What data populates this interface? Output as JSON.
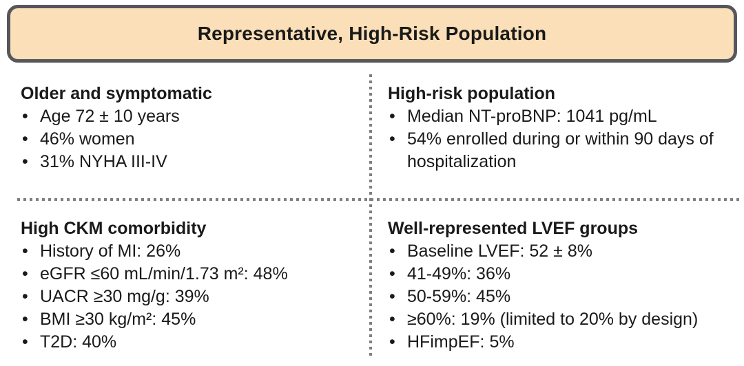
{
  "title": {
    "text": "Representative, High-Risk Population"
  },
  "colors": {
    "banner_fill": "#fbdfb8",
    "banner_border": "#56575b",
    "divider_dot": "#7f7f7f",
    "text": "#1a1a1a",
    "background": "#ffffff"
  },
  "quadrants": [
    {
      "id": "older-and-symptomatic",
      "heading": "Older and symptomatic",
      "bullets": [
        "Age 72 ± 10 years",
        "46% women",
        "31% NYHA III-IV"
      ]
    },
    {
      "id": "high-risk-population",
      "heading": "High-risk population",
      "bullets": [
        "Median NT-proBNP: 1041 pg/mL",
        "54% enrolled during or within 90 days of hospitalization"
      ]
    },
    {
      "id": "high-ckm-comorbidity",
      "heading": "High CKM comorbidity",
      "bullets": [
        "History of MI: 26%",
        "eGFR ≤60 mL/min/1.73 m²: 48%",
        "UACR ≥30 mg/g: 39%",
        "BMI ≥30 kg/m²: 45%",
        "T2D: 40%"
      ]
    },
    {
      "id": "well-represented-lvef-groups",
      "heading": "Well-represented LVEF groups",
      "bullets": [
        "Baseline LVEF: 52 ± 8%",
        "41-49%: 36%",
        "50-59%: 45%",
        "≥60%: 19% (limited to 20% by design)",
        "HFimpEF: 5%"
      ]
    }
  ]
}
